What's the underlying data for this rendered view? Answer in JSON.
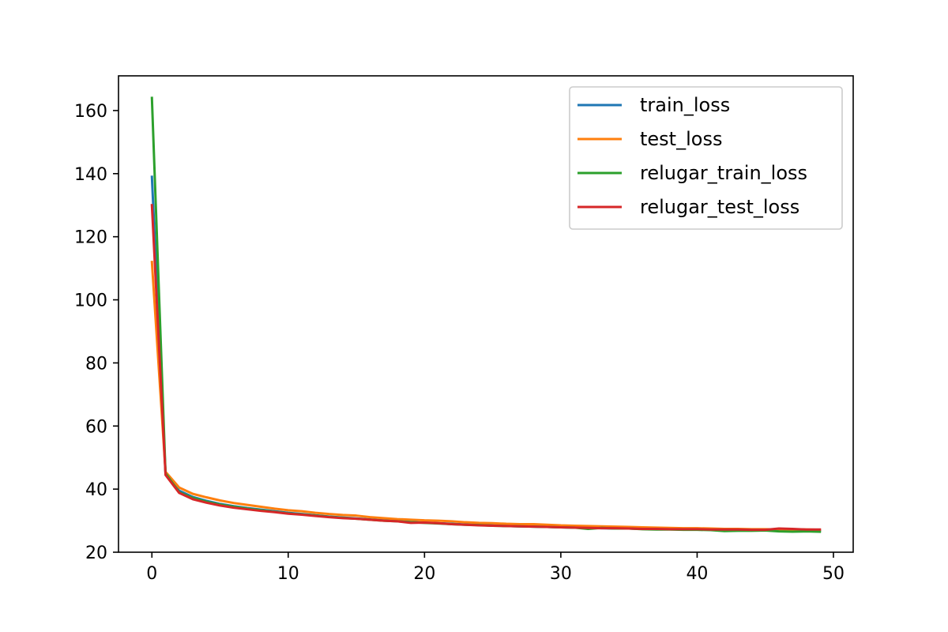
{
  "chart_data": {
    "type": "line",
    "title": "",
    "xlabel": "",
    "ylabel": "",
    "xlim": [
      -2.45,
      51.45
    ],
    "ylim": [
      20,
      171
    ],
    "xticks": [
      0,
      10,
      20,
      30,
      40,
      50
    ],
    "yticks": [
      20,
      40,
      60,
      80,
      100,
      120,
      140,
      160
    ],
    "grid": false,
    "legend_position": "top-right",
    "x": [
      0,
      1,
      2,
      3,
      4,
      5,
      6,
      7,
      8,
      9,
      10,
      11,
      12,
      13,
      14,
      15,
      16,
      17,
      18,
      19,
      20,
      21,
      22,
      23,
      24,
      25,
      26,
      27,
      28,
      29,
      30,
      31,
      32,
      33,
      34,
      35,
      36,
      37,
      38,
      39,
      40,
      41,
      42,
      43,
      44,
      45,
      46,
      47,
      48,
      49
    ],
    "series": [
      {
        "name": "train_loss",
        "color": "#1f77b4",
        "values": [
          139,
          45,
          39.5,
          37.5,
          36.3,
          35.3,
          34.6,
          34.0,
          33.5,
          33.0,
          32.5,
          32.1,
          31.7,
          31.3,
          31.0,
          30.7,
          30.4,
          30.1,
          29.9,
          29.6,
          29.4,
          29.2,
          29.0,
          28.8,
          28.6,
          28.5,
          28.3,
          28.2,
          28.1,
          28.0,
          27.9,
          27.8,
          27.7,
          27.6,
          27.5,
          27.5,
          27.4,
          27.3,
          27.3,
          27.2,
          27.2,
          27.1,
          27.1,
          27.0,
          27.0,
          27.0,
          26.9,
          26.9,
          26.9,
          26.8
        ]
      },
      {
        "name": "test_loss",
        "color": "#ff7f0e",
        "values": [
          112,
          45.5,
          40.5,
          38.5,
          37.4,
          36.4,
          35.6,
          35.0,
          34.4,
          33.8,
          33.3,
          33.0,
          32.5,
          32.1,
          31.8,
          31.6,
          31.1,
          30.8,
          30.5,
          30.3,
          30.1,
          30.0,
          29.8,
          29.5,
          29.3,
          29.2,
          29.0,
          28.9,
          28.9,
          28.7,
          28.5,
          28.4,
          28.3,
          28.2,
          28.1,
          28.0,
          27.9,
          27.8,
          27.7,
          27.6,
          27.6,
          27.5,
          27.4,
          27.4,
          27.3,
          27.3,
          27.2,
          27.2,
          27.2,
          27.1
        ]
      },
      {
        "name": "relugar_train_loss",
        "color": "#2ca02c",
        "values": [
          164,
          45,
          39.0,
          37.2,
          36.0,
          35.1,
          34.4,
          33.8,
          33.3,
          32.8,
          32.3,
          32.0,
          31.6,
          31.2,
          30.9,
          30.6,
          30.3,
          30.0,
          29.8,
          29.5,
          29.3,
          29.1,
          28.9,
          28.7,
          28.6,
          28.4,
          28.3,
          28.2,
          28.1,
          28.0,
          27.9,
          27.8,
          27.4,
          27.7,
          27.5,
          27.5,
          27.3,
          27.2,
          27.2,
          27.1,
          27.1,
          27.0,
          26.7,
          26.8,
          26.8,
          26.9,
          26.6,
          26.5,
          26.6,
          26.5
        ]
      },
      {
        "name": "relugar_test_loss",
        "color": "#d62728",
        "values": [
          130,
          44.5,
          38.8,
          36.8,
          35.7,
          34.8,
          34.1,
          33.6,
          33.1,
          32.7,
          32.2,
          31.9,
          31.5,
          31.1,
          30.8,
          30.6,
          30.3,
          30.0,
          29.8,
          29.3,
          29.4,
          29.2,
          28.9,
          28.7,
          28.5,
          28.4,
          28.3,
          28.2,
          28.1,
          28.0,
          27.9,
          27.8,
          27.7,
          27.6,
          27.6,
          27.5,
          27.4,
          27.4,
          27.3,
          27.3,
          27.3,
          27.2,
          27.2,
          27.2,
          27.1,
          27.1,
          27.5,
          27.4,
          27.2,
          27.2
        ]
      }
    ]
  }
}
